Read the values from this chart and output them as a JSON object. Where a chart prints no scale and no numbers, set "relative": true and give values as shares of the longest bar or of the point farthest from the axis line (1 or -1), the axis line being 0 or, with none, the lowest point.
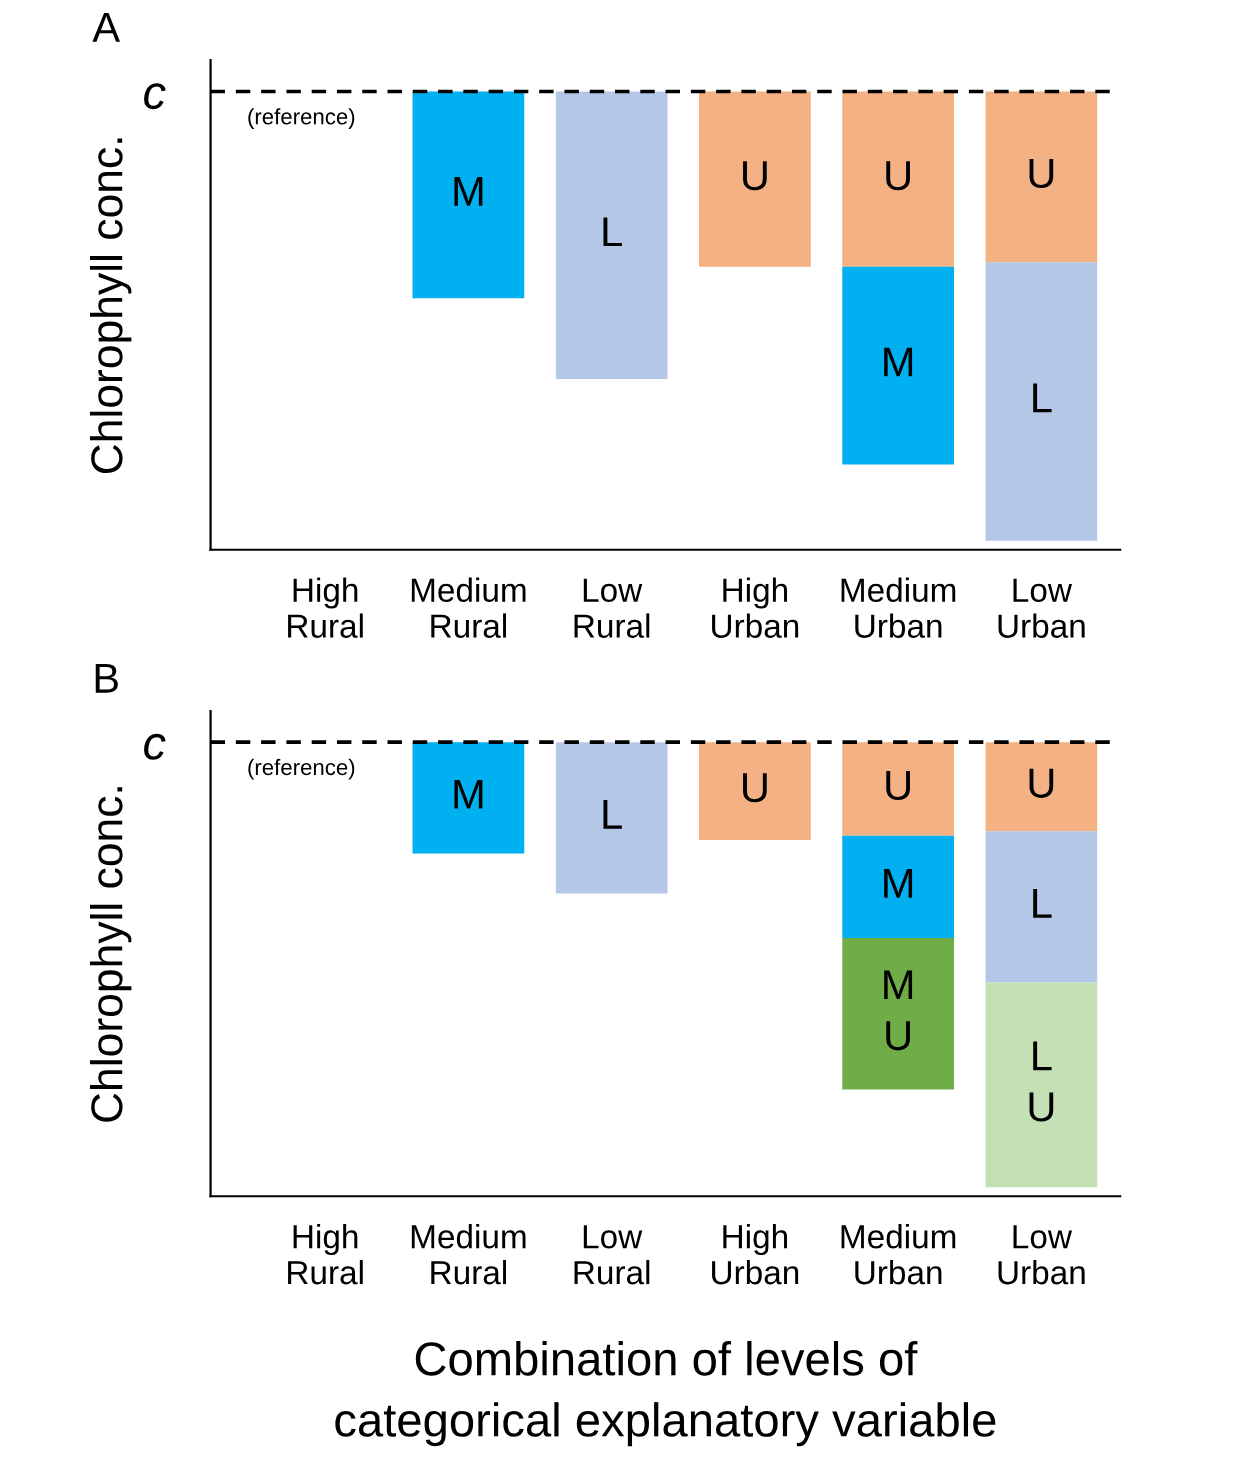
{
  "chart_data": [
    {
      "type": "bar",
      "title": "A",
      "ylabel": "Chlorophyll conc.",
      "relative": true,
      "stacked": true,
      "legend": false,
      "grid": false,
      "tick_labels": "x",
      "categories": [
        "High\nRural",
        "Medium\nRural",
        "Low\nRural",
        "High\nUrban",
        "Medium\nUrban",
        "Low\nUrban"
      ],
      "ref_lines": [
        {
          "axis": "y",
          "value": 0,
          "label": "c",
          "line_style": "dashed",
          "color": "#000000"
        }
      ],
      "annotations": [
        "(reference)"
      ],
      "series": [
        {
          "name": "U",
          "color": "#f4b183",
          "values": [
            null,
            null,
            null,
            -0.39,
            -0.39,
            -0.38
          ]
        },
        {
          "name": "M",
          "color": "#00b0f0",
          "values": [
            null,
            -0.46,
            null,
            null,
            -0.44,
            null
          ]
        },
        {
          "name": "L",
          "color": "#b4c7e7",
          "values": [
            null,
            null,
            -0.64,
            null,
            null,
            -0.62
          ]
        }
      ]
    },
    {
      "type": "bar",
      "title": "B",
      "ylabel": "Chlorophyll conc.",
      "xlabel": "Combination of levels of\ncategorical explanatory variable",
      "relative": true,
      "stacked": true,
      "legend": false,
      "grid": false,
      "tick_labels": "x",
      "categories": [
        "High\nRural",
        "Medium\nRural",
        "Low\nRural",
        "High\nUrban",
        "Medium\nUrban",
        "Low\nUrban"
      ],
      "ref_lines": [
        {
          "axis": "y",
          "value": 0,
          "label": "c",
          "line_style": "dashed",
          "color": "#000000"
        }
      ],
      "annotations": [
        "(reference)"
      ],
      "series": [
        {
          "name": "U",
          "color": "#f4b183",
          "values": [
            null,
            null,
            null,
            -0.22,
            -0.21,
            -0.2
          ]
        },
        {
          "name": "M",
          "color": "#00b0f0",
          "values": [
            null,
            -0.25,
            null,
            null,
            -0.23,
            null
          ]
        },
        {
          "name": "L",
          "color": "#b4c7e7",
          "values": [
            null,
            null,
            -0.34,
            null,
            null,
            -0.34
          ]
        },
        {
          "name": "M\nU",
          "color": "#70ad47",
          "values": [
            null,
            null,
            null,
            null,
            -0.34,
            null
          ]
        },
        {
          "name": "L\nU",
          "color": "#c5e0b4",
          "values": [
            null,
            null,
            null,
            null,
            null,
            -0.46
          ]
        }
      ]
    }
  ]
}
